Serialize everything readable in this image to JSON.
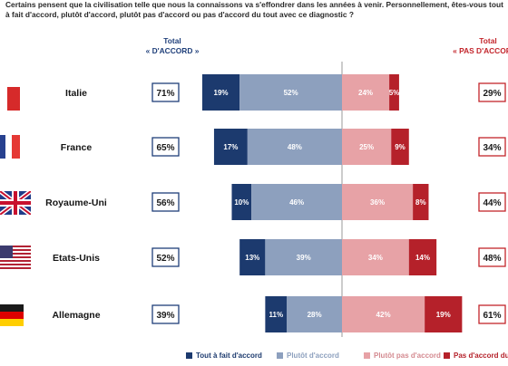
{
  "question": "Certains pensent que la civilisation telle que nous la connaissons va s'effondrer dans les années à venir. Personnellement, êtes-vous tout à fait d'accord, plutôt d'accord, plutôt pas d'accord ou pas d'accord du tout avec ce diagnostic ?",
  "headers": {
    "accord_line1": "Total",
    "accord_line2": "« D'ACCORD »",
    "pas_line1": "Total",
    "pas_line2": "« PAS D'ACCORD »"
  },
  "colors": {
    "tout_a_fait": "#1c3a6e",
    "plutot": "#8da0be",
    "plutot_pas": "#e7a2a6",
    "pas_du_tout": "#b5212a",
    "accord_box": "#1f3f7a",
    "pas_box": "#c3252b",
    "divider": "#9a9a9a"
  },
  "chart_data": {
    "type": "bar",
    "orientation": "horizontal",
    "stacking": "diverging",
    "unit": "%",
    "categories": [
      "Italie",
      "France",
      "Royaume-Uni",
      "Etats-Unis",
      "Allemagne"
    ],
    "series": [
      {
        "name": "Tout à fait d'accord",
        "side": "left",
        "values": [
          19,
          17,
          10,
          13,
          11
        ]
      },
      {
        "name": "Plutôt d'accord",
        "side": "left",
        "values": [
          52,
          48,
          46,
          39,
          28
        ]
      },
      {
        "name": "Plutôt pas d'accord",
        "side": "right",
        "values": [
          24,
          25,
          36,
          34,
          42
        ]
      },
      {
        "name": "Pas d'accord du tout",
        "side": "right",
        "values": [
          5,
          9,
          8,
          14,
          19
        ]
      }
    ],
    "total_accord": [
      71,
      65,
      56,
      52,
      39
    ],
    "total_pas_accord": [
      29,
      34,
      44,
      48,
      61
    ],
    "legend": {
      "position": "bottom",
      "labels": [
        "Tout à fait d'accord",
        "Plutôt d'accord",
        "Plutôt pas d'accord",
        "Pas d'accord du tout"
      ]
    }
  }
}
